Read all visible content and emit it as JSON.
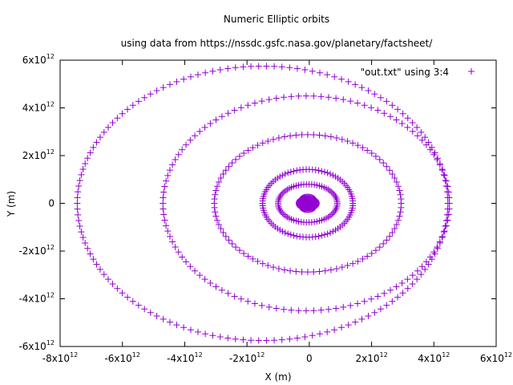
{
  "chart_data": {
    "type": "scatter",
    "title": "Numeric Elliptic orbits",
    "subtitle": "using data from https://nssdc.gsfc.nasa.gov/planetary/factsheet/",
    "xlabel": "X (m)",
    "ylabel": "Y (m)",
    "xlim": [
      -8000000000000.0,
      6000000000000.0
    ],
    "ylim": [
      -6000000000000.0,
      6000000000000.0
    ],
    "xticks": [
      {
        "value": -8000000000000.0,
        "base": "-8x10",
        "exp": "12"
      },
      {
        "value": -6000000000000.0,
        "base": "-6x10",
        "exp": "12"
      },
      {
        "value": -4000000000000.0,
        "base": "-4x10",
        "exp": "12"
      },
      {
        "value": -2000000000000.0,
        "base": "-2x10",
        "exp": "12"
      },
      {
        "value": 0,
        "base": "0",
        "exp": ""
      },
      {
        "value": 2000000000000.0,
        "base": "2x10",
        "exp": "12"
      },
      {
        "value": 4000000000000.0,
        "base": "4x10",
        "exp": "12"
      },
      {
        "value": 6000000000000.0,
        "base": "6x10",
        "exp": "12"
      }
    ],
    "yticks": [
      {
        "value": -6000000000000.0,
        "base": "-6x10",
        "exp": "12"
      },
      {
        "value": -4000000000000.0,
        "base": "-4x10",
        "exp": "12"
      },
      {
        "value": -2000000000000.0,
        "base": "-2x10",
        "exp": "12"
      },
      {
        "value": 0,
        "base": "0",
        "exp": ""
      },
      {
        "value": 2000000000000.0,
        "base": "2x10",
        "exp": "12"
      },
      {
        "value": 4000000000000.0,
        "base": "4x10",
        "exp": "12"
      },
      {
        "value": 6000000000000.0,
        "base": "6x10",
        "exp": "12"
      }
    ],
    "grid": false,
    "legend_placement": "top-right",
    "marker": "plus",
    "color": "#9400d3",
    "series": [
      {
        "name": "\"out.txt\" using 3:4",
        "orbits": [
          {
            "center_x": -1500000000000.0,
            "center_y": 0,
            "semi_x": 5950000000000.0,
            "semi_y": 5750000000000.0,
            "points": 150
          },
          {
            "center_x": -100000000000.0,
            "center_y": 0,
            "semi_x": 4600000000000.0,
            "semi_y": 4500000000000.0,
            "points": 120
          },
          {
            "center_x": -50000000000.0,
            "center_y": 0,
            "semi_x": 3000000000000.0,
            "semi_y": 2880000000000.0,
            "points": 100
          },
          {
            "center_x": -50000000000.0,
            "center_y": 0,
            "semi_x": 1450000000000.0,
            "semi_y": 1420000000000.0,
            "points": 90
          },
          {
            "center_x": -50000000000.0,
            "center_y": 0,
            "semi_x": 950000000000.0,
            "semi_y": 800000000000.0,
            "points": 70
          },
          {
            "center_x": -50000000000.0,
            "center_y": 0,
            "semi_x": 280000000000.0,
            "semi_y": 270000000000.0,
            "points": 60
          },
          {
            "center_x": -50000000000.0,
            "center_y": 0,
            "semi_x": 200000000000.0,
            "semi_y": 190000000000.0,
            "points": 45
          },
          {
            "center_x": -50000000000.0,
            "center_y": 0,
            "semi_x": 120000000000.0,
            "semi_y": 110000000000.0,
            "points": 35
          },
          {
            "center_x": -50000000000.0,
            "center_y": 0,
            "semi_x": 60000000000.0,
            "semi_y": 60000000000.0,
            "points": 20
          }
        ]
      }
    ]
  }
}
